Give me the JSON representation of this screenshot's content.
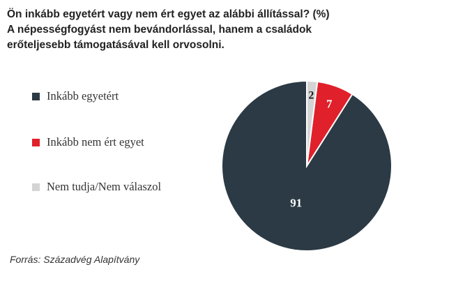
{
  "chart_data": {
    "type": "pie",
    "title": "Ön inkább egyetért vagy nem ért egyet az alábbi állítással? (%)",
    "subtitle_lines": [
      "A népességfogyást nem bevándorlással, hanem a családok",
      "erőteljesebb támogatásával kell orvosolni."
    ],
    "slices": [
      {
        "label": "Inkább egyetért",
        "value": 91,
        "color": "#2b3a44",
        "value_label_color": "#ffffff"
      },
      {
        "label": "Inkább nem ért egyet",
        "value": 7,
        "color": "#e0202b",
        "value_label_color": "#ffffff"
      },
      {
        "label": "Nem tudja/Nem válaszol",
        "value": 2,
        "color": "#d4d4d4",
        "value_label_color": "#1a1a1a"
      }
    ],
    "legend_position": "left",
    "source": "Forrás: Századvég Alapítvány"
  }
}
